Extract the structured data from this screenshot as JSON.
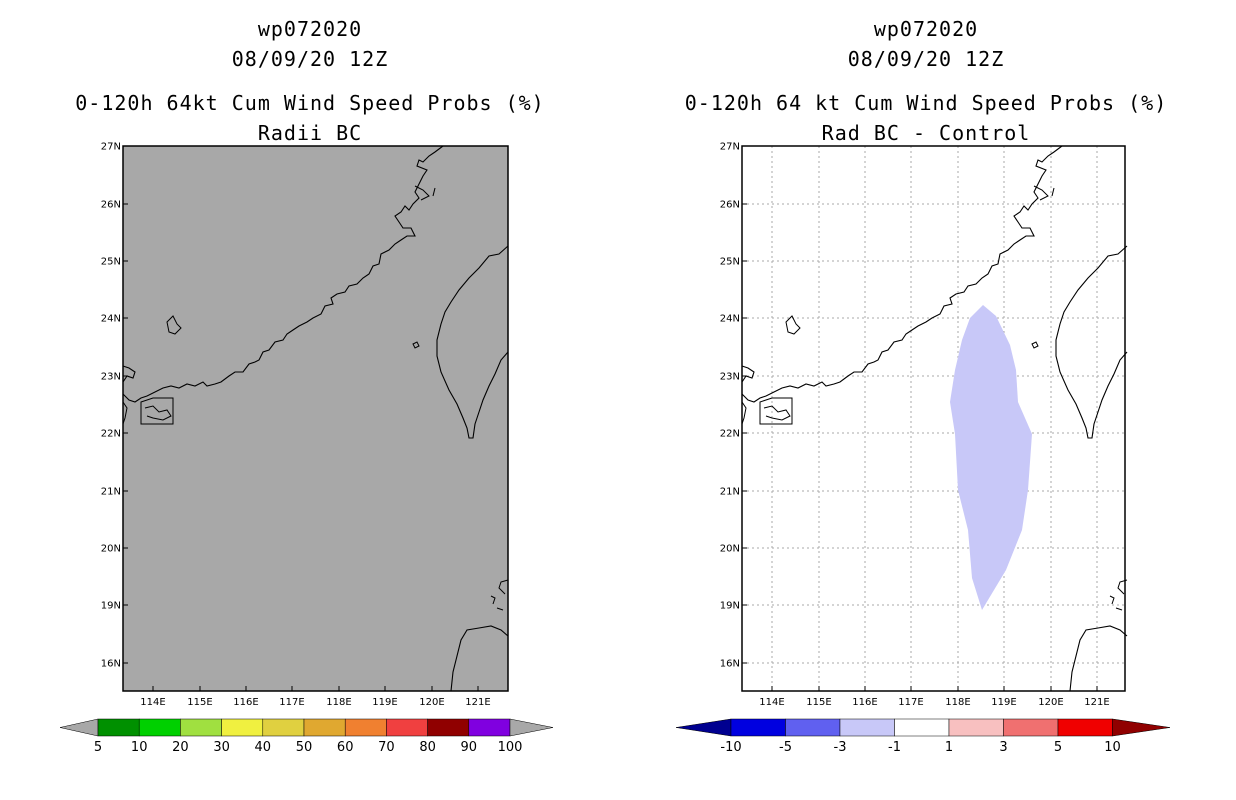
{
  "left": {
    "storm_id": "wp072020",
    "datetime": "08/09/20 12Z",
    "line1": "0-120h 64kt Cum Wind Speed Probs (%)",
    "line2": "Radii BC",
    "fill_color": "#a8a8a8",
    "xticks": [
      "114E",
      "115E",
      "116E",
      "117E",
      "118E",
      "119E",
      "120E",
      "121E"
    ],
    "yticks": [
      "27N",
      "26N",
      "25N",
      "24N",
      "23N",
      "22N",
      "21N",
      "20N",
      "19N",
      "16N"
    ],
    "colorbar_colors": [
      "#009000",
      "#00d000",
      "#a0e040",
      "#f0f040",
      "#e0d040",
      "#e0a830",
      "#f08030",
      "#f04040",
      "#900000",
      "#8000e0"
    ],
    "colorbar_labels": [
      "5",
      "10",
      "20",
      "30",
      "40",
      "50",
      "60",
      "70",
      "80",
      "90",
      "100"
    ]
  },
  "right": {
    "storm_id": "wp072020",
    "datetime": "08/09/20 12Z",
    "line1": "0-120h 64 kt Cum Wind Speed Probs (%)",
    "line2": "Rad BC - Control",
    "prob_region_color": "#c8c8f8",
    "xticks": [
      "114E",
      "115E",
      "116E",
      "117E",
      "118E",
      "119E",
      "120E",
      "121E"
    ],
    "yticks": [
      "27N",
      "26N",
      "25N",
      "24N",
      "23N",
      "22N",
      "21N",
      "20N",
      "19N",
      "16N"
    ],
    "colorbar_colors": [
      "#0000e0",
      "#6060f0",
      "#c8c8f8",
      "#ffffff",
      "#f8c0c0",
      "#f07070",
      "#f00000"
    ],
    "colorbar_end_colors": [
      "#000090",
      "#900000"
    ],
    "colorbar_labels": [
      "-10",
      "-5",
      "-3",
      "-1",
      "1",
      "3",
      "5",
      "10"
    ]
  }
}
